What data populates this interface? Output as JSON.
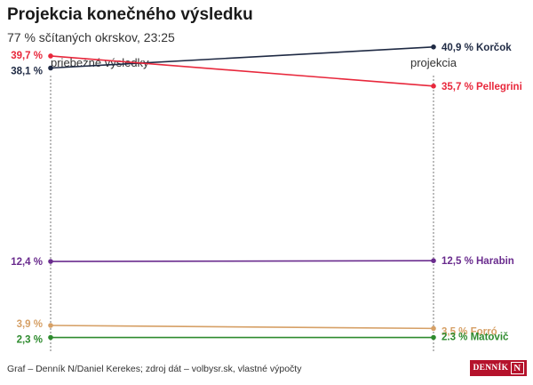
{
  "title": "Projekcia konečného výsledku",
  "subtitle": "77 % sčítaných okrskov, 23:25",
  "source": "Graf – Denník N/Daniel Kerekes; zdroj dát – volbysr.sk, vlastné výpočty",
  "logo_text": "DENNÍK",
  "logo_letter": "N",
  "chart_data": {
    "type": "line",
    "categories": [
      "priebežné výsledky",
      "projekcia"
    ],
    "ylim": [
      0,
      42
    ],
    "series": [
      {
        "name": "Korčok",
        "values": [
          38.1,
          40.9
        ],
        "left_label": "38,1 %",
        "right_label": "40,9 % Korčok",
        "color": "#1f2a44"
      },
      {
        "name": "Pellegrini",
        "values": [
          39.7,
          35.7
        ],
        "left_label": "39,7 %",
        "right_label": "35,7 % Pellegrini",
        "color": "#e8283c"
      },
      {
        "name": "Harabin",
        "values": [
          12.4,
          12.5
        ],
        "left_label": "12,4 %",
        "right_label": "12,5 % Harabin",
        "color": "#6a2c8e"
      },
      {
        "name": "Forró",
        "values": [
          3.9,
          3.5
        ],
        "left_label": "3,9 %",
        "right_label": "3,5 % Forró",
        "color": "#d6a066"
      },
      {
        "name": "Matovič",
        "values": [
          2.3,
          2.3
        ],
        "left_label": "2,3 %",
        "right_label": "2.3 % Matovič",
        "color": "#2e8b2e"
      }
    ]
  }
}
